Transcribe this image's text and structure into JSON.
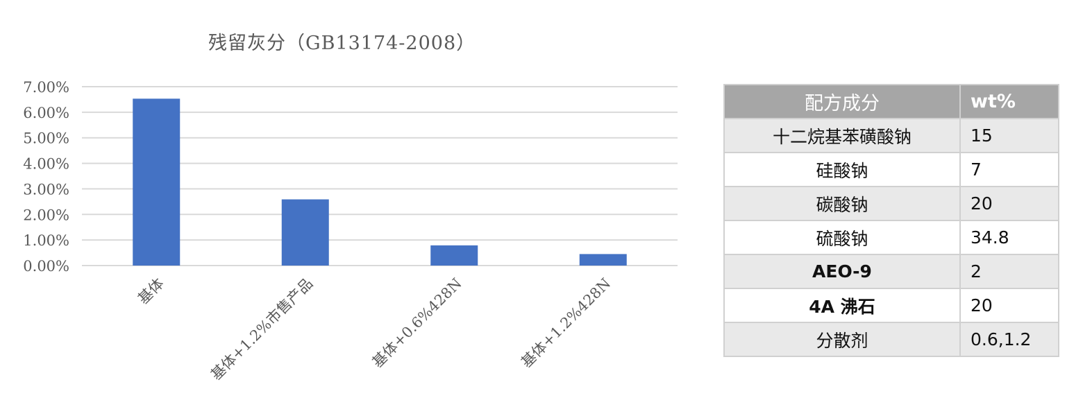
{
  "chart_data": {
    "type": "bar",
    "title": "残留灰分（GB13174-2008）",
    "categories": [
      "基体",
      "基体+1.2%市售产品",
      "基体+0.6%428N",
      "基体+1.2%428N"
    ],
    "values": [
      6.53,
      2.59,
      0.79,
      0.45
    ],
    "value_unit": "%",
    "ylim": [
      0,
      7
    ],
    "yticks": [
      "0.00%",
      "1.00%",
      "2.00%",
      "3.00%",
      "4.00%",
      "5.00%",
      "6.00%",
      "7.00%"
    ],
    "grid": true,
    "bar_color": "#4472C4"
  },
  "table": {
    "headers": [
      "配方成分",
      "wt%"
    ],
    "rows": [
      [
        "十二烷基苯磺酸钠",
        "15"
      ],
      [
        "硅酸钠",
        "7"
      ],
      [
        "碳酸钠",
        "20"
      ],
      [
        "硫酸钠",
        "34.8"
      ],
      [
        "AEO-9",
        "2"
      ],
      [
        "4A 沸石",
        "20"
      ],
      [
        "分散剂",
        "0.6,1.2"
      ]
    ]
  }
}
